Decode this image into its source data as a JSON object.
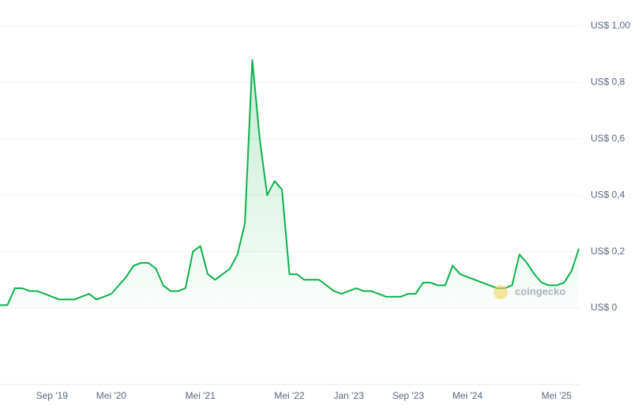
{
  "chart_data": {
    "type": "line",
    "x": [
      "2019-02",
      "2019-03",
      "2019-04",
      "2019-05",
      "2019-06",
      "2019-07",
      "2019-08",
      "2019-09",
      "2019-10",
      "2019-11",
      "2019-12",
      "2020-01",
      "2020-02",
      "2020-03",
      "2020-04",
      "2020-05",
      "2020-06",
      "2020-07",
      "2020-08",
      "2020-09",
      "2020-10",
      "2020-11",
      "2020-12",
      "2021-01",
      "2021-02",
      "2021-03",
      "2021-04",
      "2021-05",
      "2021-06",
      "2021-07",
      "2021-08",
      "2021-09",
      "2021-10",
      "2021-11",
      "2021-12",
      "2022-01",
      "2022-02",
      "2022-03",
      "2022-04",
      "2022-05",
      "2022-06",
      "2022-07",
      "2022-08",
      "2022-09",
      "2022-10",
      "2022-11",
      "2022-12",
      "2023-01",
      "2023-02",
      "2023-03",
      "2023-04",
      "2023-05",
      "2023-06",
      "2023-07",
      "2023-08",
      "2023-09",
      "2023-10",
      "2023-11",
      "2023-12",
      "2024-01",
      "2024-02",
      "2024-03",
      "2024-04",
      "2024-05",
      "2024-06",
      "2024-07",
      "2024-08",
      "2024-09",
      "2024-10",
      "2024-11",
      "2024-12",
      "2025-01",
      "2025-02",
      "2025-03",
      "2025-04",
      "2025-05",
      "2025-06",
      "2025-07",
      "2025-08"
    ],
    "values": [
      0.01,
      0.01,
      0.07,
      0.07,
      0.06,
      0.06,
      0.05,
      0.04,
      0.03,
      0.03,
      0.03,
      0.04,
      0.05,
      0.03,
      0.04,
      0.05,
      0.08,
      0.11,
      0.15,
      0.16,
      0.16,
      0.14,
      0.08,
      0.06,
      0.06,
      0.07,
      0.2,
      0.22,
      0.12,
      0.1,
      0.12,
      0.14,
      0.19,
      0.3,
      0.88,
      0.6,
      0.4,
      0.45,
      0.42,
      0.12,
      0.12,
      0.1,
      0.1,
      0.1,
      0.08,
      0.06,
      0.05,
      0.06,
      0.07,
      0.06,
      0.06,
      0.05,
      0.04,
      0.04,
      0.04,
      0.05,
      0.05,
      0.09,
      0.09,
      0.08,
      0.08,
      0.15,
      0.12,
      0.11,
      0.1,
      0.09,
      0.08,
      0.07,
      0.07,
      0.08,
      0.19,
      0.16,
      0.12,
      0.09,
      0.08,
      0.08,
      0.09,
      0.13,
      0.21
    ],
    "color": "#0cb14b",
    "ylim": [
      0,
      1
    ],
    "yticks": [
      {
        "value": 0,
        "label": "US$ 0"
      },
      {
        "value": 0.2,
        "label": "US$ 0,2"
      },
      {
        "value": 0.4,
        "label": "US$ 0,4"
      },
      {
        "value": 0.6,
        "label": "US$ 0,6"
      },
      {
        "value": 0.8,
        "label": "US$ 0,8"
      },
      {
        "value": 1,
        "label": "US$ 1,00"
      }
    ],
    "xticks": [
      {
        "value": "2019-09",
        "label": "Sep '19"
      },
      {
        "value": "2020-05",
        "label": "Mei '20"
      },
      {
        "value": "2021-05",
        "label": "Mei '21"
      },
      {
        "value": "2022-05",
        "label": "Mei '22"
      },
      {
        "value": "2023-01",
        "label": "Jan '23"
      },
      {
        "value": "2023-09",
        "label": "Sep '23"
      },
      {
        "value": "2024-05",
        "label": "Mei '24"
      },
      {
        "value": "2025-05",
        "label": "Mei '25"
      }
    ],
    "grid": true,
    "watermark": "coingecko"
  }
}
